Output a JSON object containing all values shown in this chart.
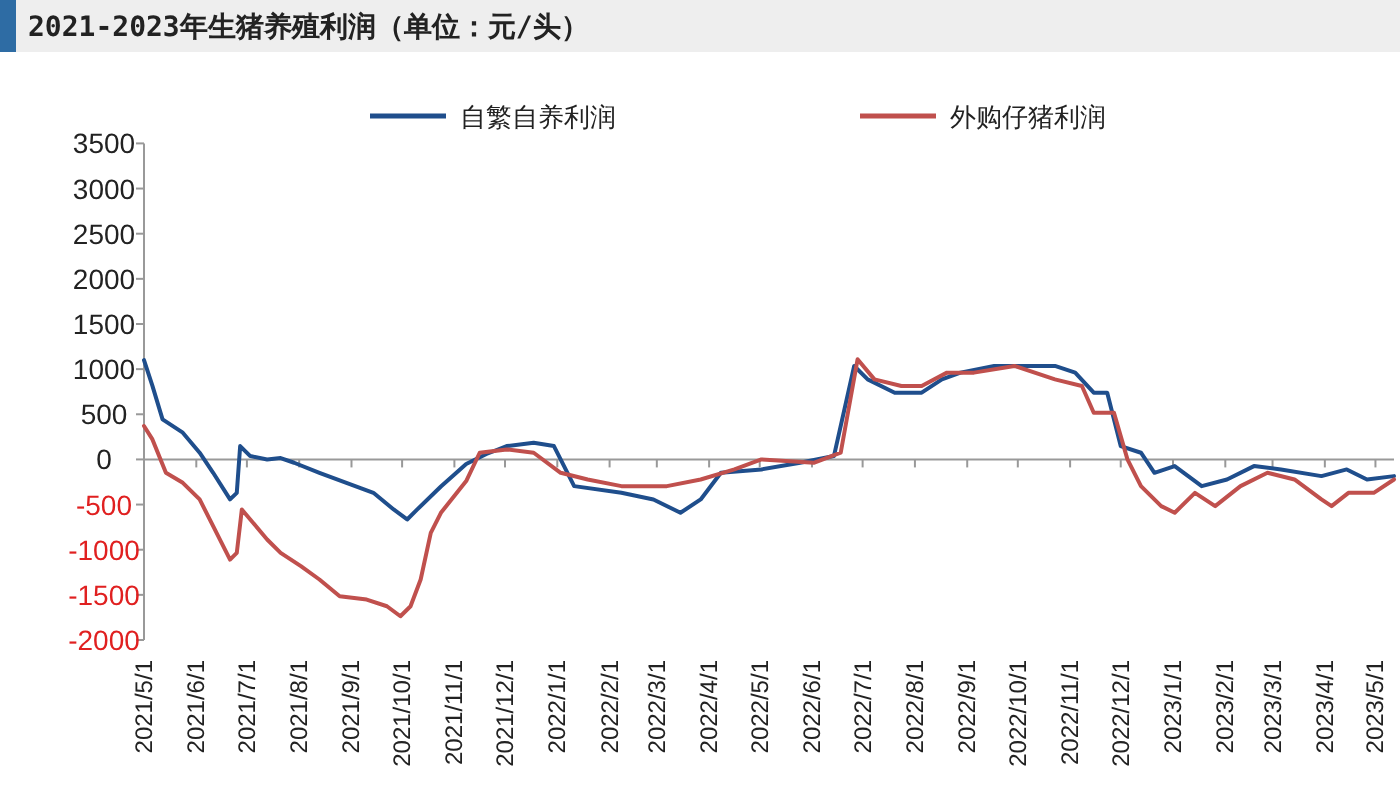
{
  "chart_data": {
    "type": "line",
    "title": "2021-2023年生猪养殖利润（单位：元/头）",
    "legend": "top",
    "xlim": [
      "2021-05-01",
      "2023-05-12"
    ],
    "xticks": [
      {
        "value": "2021-05-01",
        "label": "2021/5/1"
      },
      {
        "value": "2021-06-01",
        "label": "2021/6/1"
      },
      {
        "value": "2021-07-01",
        "label": "2021/7/1"
      },
      {
        "value": "2021-08-01",
        "label": "2021/8/1"
      },
      {
        "value": "2021-09-01",
        "label": "2021/9/1"
      },
      {
        "value": "2021-10-01",
        "label": "2021/10/1"
      },
      {
        "value": "2021-11-01",
        "label": "2021/11/1"
      },
      {
        "value": "2021-12-01",
        "label": "2021/12/1"
      },
      {
        "value": "2022-01-01",
        "label": "2022/1/1"
      },
      {
        "value": "2022-02-01",
        "label": "2022/2/1"
      },
      {
        "value": "2022-03-01",
        "label": "2022/3/1"
      },
      {
        "value": "2022-04-01",
        "label": "2022/4/1"
      },
      {
        "value": "2022-05-01",
        "label": "2022/5/1"
      },
      {
        "value": "2022-06-01",
        "label": "2022/6/1"
      },
      {
        "value": "2022-07-01",
        "label": "2022/7/1"
      },
      {
        "value": "2022-08-01",
        "label": "2022/8/1"
      },
      {
        "value": "2022-09-01",
        "label": "2022/9/1"
      },
      {
        "value": "2022-10-01",
        "label": "2022/10/1"
      },
      {
        "value": "2022-11-01",
        "label": "2022/11/1"
      },
      {
        "value": "2022-12-01",
        "label": "2022/12/1"
      },
      {
        "value": "2023-01-01",
        "label": "2023/1/1"
      },
      {
        "value": "2023-02-01",
        "label": "2023/2/1"
      },
      {
        "value": "2023-03-01",
        "label": "2023/3/1"
      },
      {
        "value": "2023-04-01",
        "label": "2023/4/1"
      },
      {
        "value": "2023-05-01",
        "label": "2023/5/1"
      }
    ],
    "ylim": [
      -2000,
      3500
    ],
    "yticks": [
      -2000,
      -1500,
      -1000,
      -500,
      0,
      500,
      1000,
      1500,
      2000,
      2500,
      3000,
      3500
    ],
    "series": [
      {
        "name": "自繁自养利润",
        "color": "#1f4e8c",
        "x": [
          "2021-05-01",
          "2021-05-06",
          "2021-05-12",
          "2021-05-24",
          "2021-06-03",
          "2021-06-11",
          "2021-06-21",
          "2021-06-25",
          "2021-06-27",
          "2021-07-03",
          "2021-07-13",
          "2021-07-21",
          "2021-07-29",
          "2021-08-13",
          "2021-08-29",
          "2021-09-14",
          "2021-09-26",
          "2021-10-04",
          "2021-10-10",
          "2021-10-24",
          "2021-11-08",
          "2021-11-20",
          "2021-12-02",
          "2021-12-18",
          "2021-12-30",
          "2022-01-11",
          "2022-02-08",
          "2022-02-27",
          "2022-03-15",
          "2022-03-27",
          "2022-04-08",
          "2022-05-02",
          "2022-05-25",
          "2022-06-14",
          "2022-06-26",
          "2022-07-04",
          "2022-07-20",
          "2022-08-05",
          "2022-08-17",
          "2022-08-28",
          "2022-09-17",
          "2022-10-23",
          "2022-11-04",
          "2022-11-15",
          "2022-11-23",
          "2022-12-01",
          "2022-12-13",
          "2022-12-21",
          "2023-01-02",
          "2023-01-18",
          "2023-02-02",
          "2023-02-18",
          "2023-03-06",
          "2023-03-30",
          "2023-04-14",
          "2023-04-26",
          "2023-05-12"
        ],
        "values": [
          1100,
          815,
          443,
          296,
          74,
          -148,
          -443,
          -370,
          148,
          37,
          0,
          15,
          -37,
          -148,
          -259,
          -370,
          -554,
          -665,
          -554,
          -300,
          -50,
          60,
          148,
          185,
          148,
          -296,
          -370,
          -443,
          -591,
          -443,
          -148,
          -111,
          -37,
          37,
          1035,
          887,
          739,
          739,
          887,
          961,
          1035,
          1035,
          961,
          739,
          739,
          148,
          74,
          -148,
          -74,
          -296,
          -222,
          -74,
          -111,
          -185,
          -111,
          -222,
          -185
        ]
      },
      {
        "name": "外购仔猪利润",
        "color": "#c0504d",
        "x": [
          "2021-05-01",
          "2021-05-06",
          "2021-05-14",
          "2021-05-24",
          "2021-06-03",
          "2021-06-11",
          "2021-06-21",
          "2021-06-25",
          "2021-06-28",
          "2021-07-03",
          "2021-07-13",
          "2021-07-21",
          "2021-08-02",
          "2021-08-13",
          "2021-08-25",
          "2021-09-10",
          "2021-09-22",
          "2021-09-30",
          "2021-10-06",
          "2021-10-12",
          "2021-10-18",
          "2021-10-24",
          "2021-11-08",
          "2021-11-16",
          "2021-12-02",
          "2021-12-18",
          "2022-01-03",
          "2022-01-19",
          "2022-02-08",
          "2022-03-07",
          "2022-03-27",
          "2022-04-16",
          "2022-05-02",
          "2022-06-02",
          "2022-06-18",
          "2022-06-28",
          "2022-07-08",
          "2022-07-24",
          "2022-08-05",
          "2022-08-20",
          "2022-09-05",
          "2022-09-29",
          "2022-10-23",
          "2022-11-08",
          "2022-11-15",
          "2022-11-27",
          "2022-12-05",
          "2022-12-13",
          "2022-12-25",
          "2023-01-02",
          "2023-01-14",
          "2023-01-26",
          "2023-02-10",
          "2023-02-26",
          "2023-03-14",
          "2023-03-30",
          "2023-04-05",
          "2023-04-15",
          "2023-04-30",
          "2023-05-12"
        ],
        "values": [
          370,
          222,
          -148,
          -259,
          -443,
          -739,
          -1109,
          -1035,
          -554,
          -665,
          -887,
          -1035,
          -1182,
          -1330,
          -1515,
          -1552,
          -1626,
          -1737,
          -1626,
          -1330,
          -813,
          -591,
          -240,
          74,
          111,
          74,
          -148,
          -222,
          -296,
          -296,
          -222,
          -111,
          0,
          -37,
          74,
          1109,
          887,
          813,
          813,
          961,
          961,
          1035,
          887,
          813,
          517,
          517,
          0,
          -296,
          -517,
          -591,
          -370,
          -517,
          -296,
          -148,
          -222,
          -443,
          -517,
          -370,
          -370,
          -222
        ]
      }
    ]
  }
}
